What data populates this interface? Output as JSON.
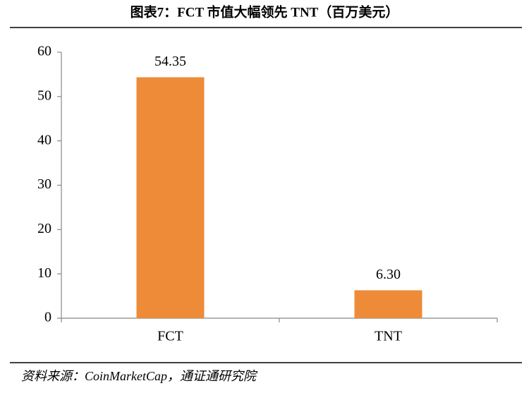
{
  "chart_data": {
    "type": "bar",
    "title": "图表7：FCT 市值大幅领先 TNT（百万美元）",
    "categories": [
      "FCT",
      "TNT"
    ],
    "values": [
      54.35,
      6.3
    ],
    "value_labels": [
      "54.35",
      "6.30"
    ],
    "color": "#ed8b38",
    "ylim": [
      0,
      60
    ],
    "yticks": [
      0,
      10,
      20,
      30,
      40,
      50,
      60
    ],
    "grid": false,
    "source": "资料来源：CoinMarketCap，通证通研究院"
  }
}
